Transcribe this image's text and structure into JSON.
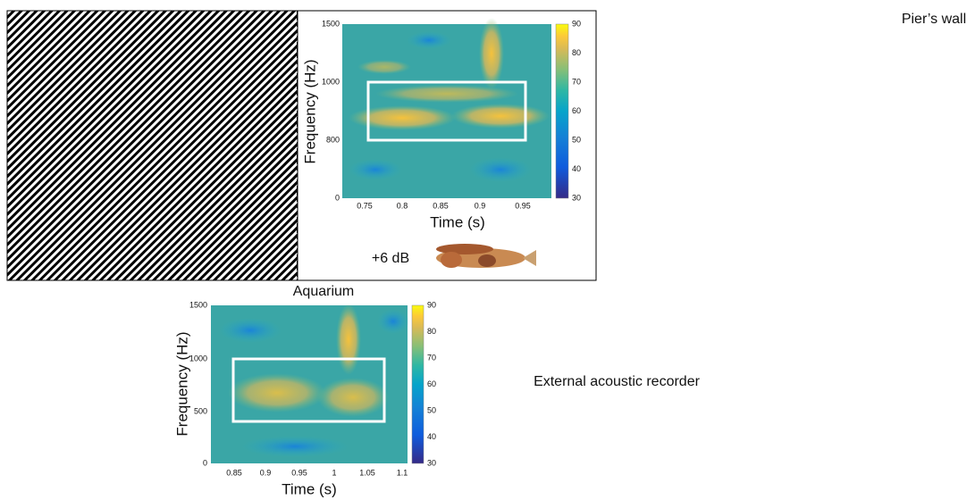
{
  "labels": {
    "pier": "Pier’s wall",
    "aquarium": "Aquarium",
    "external": "External acoustic recorder",
    "gain": "+6 dB"
  },
  "panels": [
    {
      "xlabel": "Time (s)",
      "ylabel": "Frequency (Hz)",
      "xticks": [
        "0.75",
        "0.8",
        "0.85",
        "0.9",
        "0.95"
      ],
      "yticks": [
        "1500",
        "1000",
        "800",
        "0"
      ],
      "cticks": [
        "90",
        "80",
        "70",
        "60",
        "50",
        "40",
        "30"
      ]
    },
    {
      "xlabel": "Time (s)",
      "ylabel": "Frequency (Hz)",
      "xticks": [
        "0.85",
        "0.9",
        "0.95",
        "1",
        "1.05",
        "1.1"
      ],
      "yticks": [
        "1500",
        "1000",
        "500",
        "0"
      ],
      "cticks": [
        "90",
        "80",
        "70",
        "60",
        "50",
        "40",
        "30"
      ]
    }
  ]
}
